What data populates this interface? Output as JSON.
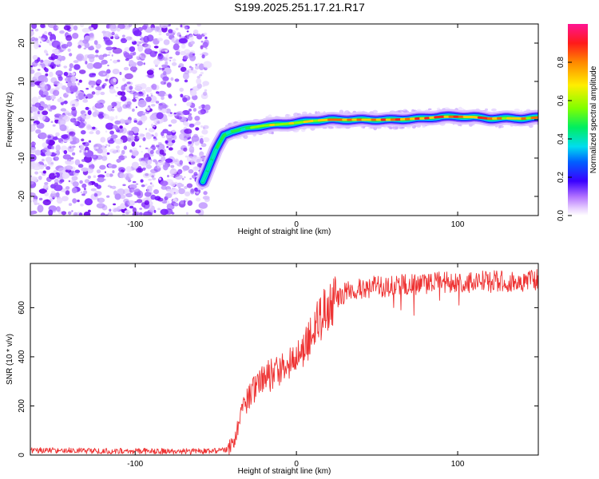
{
  "title": "S199.2025.251.17.21.R17",
  "colors": {
    "axis": "#000000",
    "snr_line": "#ee3333",
    "noise": "#8a2be2"
  },
  "chart_data": [
    {
      "type": "heatmap",
      "title": "",
      "xlabel": "Height of straight line (km)",
      "ylabel": "Frequency (Hz)",
      "xlim": [
        -165,
        150
      ],
      "ylim": [
        -25,
        25
      ],
      "xticks": [
        -100,
        0,
        100
      ],
      "yticks": [
        -20,
        -10,
        0,
        10,
        20
      ],
      "noise_region": {
        "x_start": -165,
        "x_end": -55,
        "freq_min": -25,
        "freq_max": 25
      },
      "ridge": {
        "x": [
          -58,
          -50,
          -45,
          -40,
          -30,
          -20,
          -10,
          0,
          10,
          20,
          40,
          60,
          80,
          90,
          100,
          110,
          120,
          130,
          140,
          150
        ],
        "frequency": [
          -16,
          -8,
          -4,
          -3,
          -2.2,
          -1.5,
          -1.2,
          -0.8,
          -0.3,
          0,
          0,
          0,
          0.4,
          0.8,
          0.8,
          0.7,
          0.3,
          0.4,
          0.3,
          0.6
        ],
        "amplitude": [
          0.25,
          0.35,
          0.45,
          0.5,
          0.55,
          0.6,
          0.65,
          0.7,
          0.75,
          0.8,
          0.8,
          0.8,
          0.8,
          0.85,
          0.85,
          0.8,
          0.75,
          0.7,
          0.7,
          0.7
        ]
      },
      "colorbar": {
        "label": "Normalized spectral amplitude",
        "range": [
          0,
          1
        ],
        "ticks": [
          "0.0",
          "0.2",
          "0.4",
          "0.6",
          "0.8"
        ],
        "tick_values": [
          0,
          0.2,
          0.4,
          0.6,
          0.8
        ]
      }
    },
    {
      "type": "line",
      "title": "",
      "xlabel": "Height of straight line (km)",
      "ylabel": "SNR (10 * v/v)",
      "xlim": [
        -165,
        150
      ],
      "ylim": [
        0,
        780
      ],
      "xticks": [
        -100,
        0,
        100
      ],
      "yticks": [
        0,
        200,
        400,
        600
      ],
      "series": [
        {
          "name": "SNR",
          "x": [
            -165,
            -140,
            -120,
            -100,
            -80,
            -60,
            -50,
            -44,
            -40,
            -38,
            -35,
            -30,
            -25,
            -20,
            -15,
            -10,
            -5,
            0,
            5,
            10,
            15,
            20,
            25,
            30,
            40,
            60,
            80,
            100,
            120,
            140,
            150
          ],
          "values": [
            20,
            18,
            17,
            16,
            16,
            15,
            16,
            20,
            40,
            80,
            150,
            230,
            280,
            310,
            330,
            350,
            370,
            400,
            440,
            500,
            560,
            610,
            640,
            660,
            680,
            690,
            700,
            705,
            705,
            710,
            715
          ]
        }
      ]
    }
  ]
}
